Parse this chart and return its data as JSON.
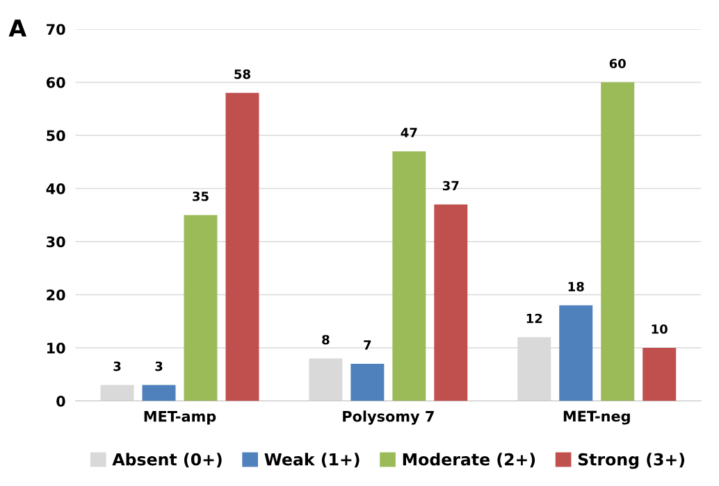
{
  "chart_data": {
    "type": "bar",
    "annotations": [
      "A"
    ],
    "categories": [
      "MET-amp",
      "Polysomy 7",
      "MET-neg"
    ],
    "series": [
      {
        "name": "Absent (0+)",
        "color": "#d9d9d9",
        "values": [
          3,
          8,
          12
        ]
      },
      {
        "name": "Weak (1+)",
        "color": "#4f81bd",
        "values": [
          3,
          7,
          18
        ]
      },
      {
        "name": "Moderate (2+)",
        "color": "#9bbb59",
        "values": [
          35,
          47,
          60
        ]
      },
      {
        "name": "Strong (3+)",
        "color": "#c0504d",
        "values": [
          58,
          37,
          10
        ]
      }
    ],
    "ylim": [
      0,
      70
    ],
    "yticks": [
      0,
      10,
      20,
      30,
      40,
      50,
      60,
      70
    ],
    "grid": "y",
    "legend": "bottom",
    "data_labels": true
  }
}
